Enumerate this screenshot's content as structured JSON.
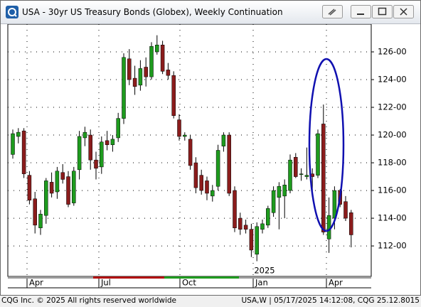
{
  "window": {
    "title": "USA - 30yr US Treasury Bonds (Globex), Weekly Continuation"
  },
  "footer": {
    "left": "CQG Inc. © 2025 All rights reserved worldwide",
    "right": "USA,W | 05/17/2025 14:12:08, CQG 25.12.8015"
  },
  "chart_data": {
    "type": "candlestick",
    "up_color": "#1e9b1e",
    "down_color": "#8b1c1c",
    "ylim": [
      109.8,
      128
    ],
    "yticks": [
      {
        "value": 112,
        "label": "112-00"
      },
      {
        "value": 114,
        "label": "114-00"
      },
      {
        "value": 116,
        "label": "116-00"
      },
      {
        "value": 118,
        "label": "118-00"
      },
      {
        "value": 120,
        "label": "120-00"
      },
      {
        "value": 122,
        "label": "122-00"
      },
      {
        "value": 124,
        "label": "124-00"
      },
      {
        "value": 126,
        "label": "126-00"
      }
    ],
    "grid": true,
    "x_labels": [
      "Apr",
      "Jul",
      "Oct",
      "Jan",
      "Apr"
    ],
    "year_label": "2025",
    "open": [
      118.6,
      119.9,
      120.3,
      117.1,
      115.4,
      113.3,
      114.2,
      116.6,
      115.9,
      117.3,
      117.0,
      115.1,
      117.5,
      119.8,
      120.0,
      118.2,
      117.7,
      119.6,
      119.3,
      119.8,
      121.2,
      125.5,
      124.1,
      123.6,
      124.9,
      124.2,
      126.0,
      126.5,
      124.7,
      124.3,
      121.1,
      119.9,
      119.7,
      118.0,
      117.1,
      116.7,
      115.6,
      116.3,
      119.2,
      120.0,
      116.0,
      114.0,
      113.5,
      113.2,
      111.4,
      113.2,
      113.5,
      114.4,
      115.5,
      115.6,
      116.0,
      118.4,
      117.2,
      117.0,
      117.2,
      117.1,
      120.8,
      112.5,
      114.0,
      116.0,
      115.2,
      114.4
    ],
    "high": [
      120.4,
      120.5,
      120.5,
      117.4,
      115.9,
      114.6,
      116.9,
      117.3,
      117.7,
      117.9,
      117.4,
      117.7,
      120.3,
      120.6,
      120.4,
      118.8,
      119.9,
      120.3,
      120.0,
      121.6,
      125.9,
      126.2,
      125.0,
      125.4,
      125.6,
      126.7,
      127.2,
      126.8,
      125.2,
      124.6,
      121.5,
      120.2,
      120.0,
      118.4,
      117.5,
      117.0,
      116.4,
      119.3,
      120.2,
      120.2,
      116.3,
      114.4,
      113.9,
      113.6,
      113.7,
      113.9,
      114.9,
      116.3,
      116.6,
      116.8,
      118.6,
      118.7,
      117.6,
      119.1,
      117.6,
      120.4,
      122.2,
      115.5,
      116.3,
      116.1,
      115.6,
      114.6
    ],
    "low": [
      118.3,
      119.4,
      116.9,
      115.0,
      112.9,
      112.8,
      113.6,
      115.5,
      115.4,
      116.5,
      114.8,
      114.9,
      116.8,
      119.2,
      117.5,
      116.8,
      117.2,
      118.9,
      118.8,
      119.5,
      120.8,
      123.6,
      122.9,
      123.2,
      123.5,
      124.0,
      125.8,
      124.4,
      124.0,
      121.2,
      119.6,
      119.6,
      117.5,
      115.8,
      115.7,
      115.3,
      115.2,
      116.0,
      118.8,
      115.6,
      113.0,
      112.8,
      112.9,
      111.2,
      110.9,
      112.9,
      113.3,
      114.1,
      113.2,
      114.0,
      115.8,
      116.9,
      116.7,
      116.8,
      115.8,
      116.9,
      112.8,
      111.5,
      113.2,
      114.8,
      113.8,
      111.9
    ],
    "close": [
      120.1,
      120.2,
      117.2,
      115.3,
      113.5,
      114.3,
      116.7,
      115.8,
      117.4,
      116.8,
      115.0,
      117.4,
      119.9,
      120.2,
      118.2,
      117.6,
      119.5,
      119.3,
      119.7,
      121.2,
      125.6,
      124.0,
      123.5,
      124.8,
      124.2,
      126.4,
      126.5,
      124.6,
      124.3,
      121.4,
      119.9,
      120.0,
      117.8,
      116.2,
      116.0,
      115.8,
      116.0,
      118.9,
      120.0,
      115.8,
      113.3,
      113.2,
      113.2,
      111.7,
      113.4,
      113.6,
      114.7,
      116.0,
      116.3,
      116.4,
      118.2,
      117.0,
      117.2,
      117.1,
      117.0,
      120.1,
      113.0,
      114.2,
      116.0,
      115.0,
      114.0,
      112.8
    ]
  }
}
